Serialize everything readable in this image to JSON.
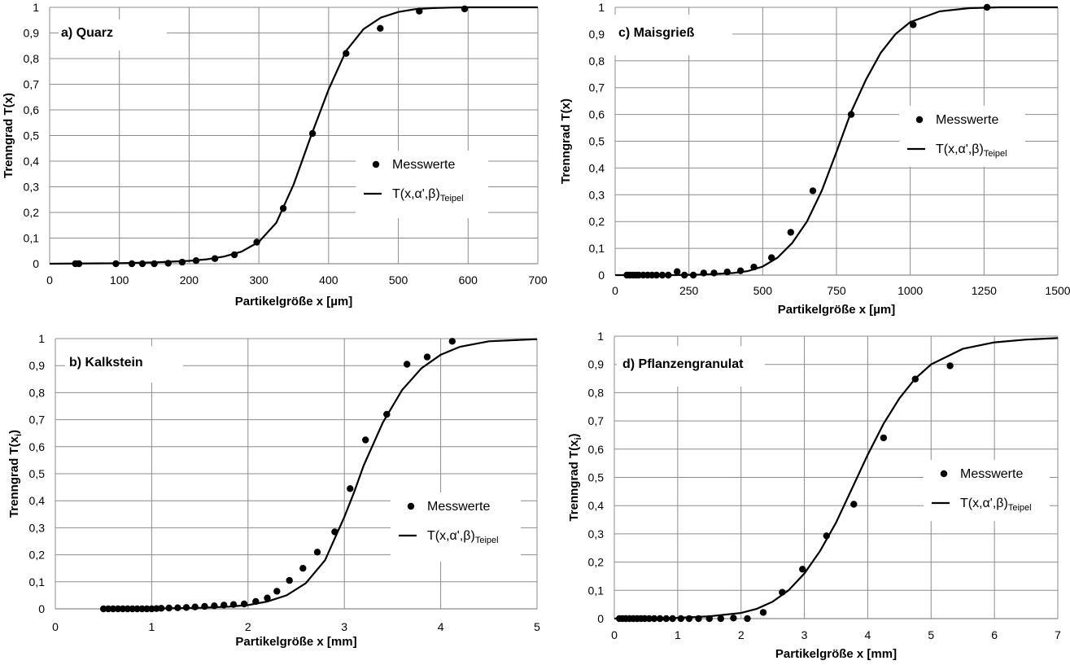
{
  "chart_data": [
    {
      "type": "scatter",
      "title": "a) Quarz",
      "xlabel": "Partikelgröße x [µm]",
      "ylabel": "Trenngrad T(x)",
      "xlim": [
        0,
        700
      ],
      "ylim": [
        0,
        1
      ],
      "xticks": [
        "0",
        "100",
        "200",
        "300",
        "400",
        "500",
        "600",
        "700"
      ],
      "yticks": [
        "0",
        "0,1",
        "0,2",
        "0,3",
        "0,4",
        "0,5",
        "0,6",
        "0,7",
        "0,8",
        "0,9",
        "1"
      ],
      "grid": "vertical and horizontal",
      "series": [
        {
          "name": "Messwerte",
          "style": "markers",
          "x": [
            37,
            42,
            95,
            118,
            133,
            150,
            170,
            190,
            210,
            237,
            265,
            297,
            335,
            377,
            425,
            474,
            530,
            595
          ],
          "y": [
            0,
            0,
            0,
            0,
            0,
            0,
            0.002,
            0.006,
            0.012,
            0.02,
            0.035,
            0.084,
            0.216,
            0.508,
            0.82,
            0.918,
            0.985,
            0.994
          ]
        },
        {
          "name": "T(x,α',β)Teipel",
          "name_main": "T(x,α',β)",
          "name_sub": "Teipel",
          "style": "line",
          "x": [
            0,
            100,
            150,
            200,
            225,
            250,
            275,
            300,
            325,
            350,
            375,
            400,
            425,
            450,
            475,
            500,
            525,
            550,
            575,
            600,
            650,
            700
          ],
          "y": [
            0,
            0.002,
            0.005,
            0.011,
            0.017,
            0.028,
            0.047,
            0.085,
            0.16,
            0.31,
            0.5,
            0.68,
            0.83,
            0.915,
            0.96,
            0.982,
            0.993,
            0.997,
            0.999,
            1,
            1,
            1
          ]
        }
      ],
      "legend": "right-center"
    },
    {
      "type": "scatter",
      "title": "b) Kalkstein",
      "xlabel": "Partikelgröße x [mm]",
      "ylabel": "Trenngrad T(xi)",
      "ylabel_main": "Trenngrad T(x",
      "ylabel_sub": "i",
      "ylabel_end": ")",
      "xlim": [
        0,
        5
      ],
      "ylim": [
        0,
        1
      ],
      "xticks": [
        "0",
        "1",
        "2",
        "3",
        "4",
        "5"
      ],
      "yticks": [
        "0",
        "0,1",
        "0,2",
        "0,3",
        "0,4",
        "0,5",
        "0,6",
        "0,7",
        "0,8",
        "0,9",
        "1"
      ],
      "grid": "vertical and horizontal",
      "series": [
        {
          "name": "Messwerte",
          "style": "markers",
          "x": [
            0.5,
            0.55,
            0.6,
            0.65,
            0.7,
            0.75,
            0.8,
            0.85,
            0.9,
            0.95,
            1.0,
            1.05,
            1.1,
            1.18,
            1.27,
            1.36,
            1.45,
            1.55,
            1.65,
            1.75,
            1.85,
            1.96,
            2.08,
            2.2,
            2.3,
            2.43,
            2.57,
            2.72,
            2.9,
            3.06,
            3.22,
            3.44,
            3.65,
            3.86,
            4.12
          ],
          "y": [
            0,
            0,
            0,
            0,
            0,
            0,
            0,
            0,
            0,
            0,
            0,
            0.001,
            0.002,
            0.003,
            0.004,
            0.005,
            0.007,
            0.009,
            0.011,
            0.014,
            0.016,
            0.018,
            0.027,
            0.04,
            0.065,
            0.105,
            0.15,
            0.21,
            0.285,
            0.445,
            0.625,
            0.72,
            0.905,
            0.932,
            0.99
          ]
        },
        {
          "name": "T(x,α',β)Teipel",
          "name_main": "T(x,α',β)",
          "name_sub": "Teipel",
          "style": "line",
          "x": [
            0.5,
            1.0,
            1.5,
            1.8,
            2.0,
            2.2,
            2.4,
            2.6,
            2.8,
            3.0,
            3.1,
            3.2,
            3.4,
            3.6,
            3.8,
            4.0,
            4.2,
            4.5,
            5.0
          ],
          "y": [
            0,
            0.001,
            0.004,
            0.008,
            0.014,
            0.027,
            0.05,
            0.095,
            0.18,
            0.34,
            0.43,
            0.53,
            0.69,
            0.81,
            0.89,
            0.94,
            0.97,
            0.99,
            0.998
          ]
        }
      ],
      "legend": "right-center"
    },
    {
      "type": "scatter",
      "title": "c) Maisgrieß",
      "xlabel": "Partikelgröße x [µm]",
      "ylabel": "Trenngrad T(x)",
      "xlim": [
        0,
        1500
      ],
      "ylim": [
        0,
        1
      ],
      "xticks": [
        "0",
        "250",
        "500",
        "750",
        "1000",
        "1250",
        "1500"
      ],
      "yticks": [
        "0",
        "0,1",
        "0,2",
        "0,3",
        "0,4",
        "0,5",
        "0,6",
        "0,7",
        "0,8",
        "0,9",
        "1"
      ],
      "grid": "vertical and horizontal",
      "series": [
        {
          "name": "Messwerte",
          "style": "markers",
          "x": [
            40,
            50,
            60,
            70,
            80,
            95,
            110,
            125,
            140,
            160,
            180,
            210,
            235,
            265,
            300,
            335,
            380,
            425,
            470,
            530,
            595,
            670,
            800,
            1010,
            1260
          ],
          "y": [
            0,
            0,
            0,
            0,
            0,
            0,
            0,
            0,
            0,
            0,
            0,
            0.013,
            0,
            0,
            0.008,
            0.008,
            0.012,
            0.016,
            0.03,
            0.065,
            0.16,
            0.315,
            0.6,
            0.935,
            1.0
          ]
        },
        {
          "name": "T(x,α',β)Teipel",
          "name_main": "T(x,α',β)",
          "name_sub": "Teipel",
          "style": "line",
          "x": [
            0,
            200,
            300,
            400,
            450,
            500,
            550,
            600,
            650,
            700,
            750,
            800,
            850,
            900,
            950,
            1000,
            1100,
            1200,
            1300,
            1400,
            1500
          ],
          "y": [
            0,
            0,
            0.002,
            0.008,
            0.015,
            0.032,
            0.065,
            0.12,
            0.2,
            0.315,
            0.46,
            0.61,
            0.73,
            0.83,
            0.9,
            0.945,
            0.985,
            0.997,
            1,
            1,
            1
          ]
        }
      ],
      "legend": "right-center"
    },
    {
      "type": "scatter",
      "title": "d) Pflanzengranulat",
      "xlabel": "Partikelgröße x [mm]",
      "ylabel": "Trenngrad T(xi)",
      "ylabel_main": "Trenngrad T(x",
      "ylabel_sub": "i",
      "ylabel_end": ")",
      "xlim": [
        0,
        7
      ],
      "ylim": [
        0,
        1
      ],
      "xticks": [
        "0",
        "1",
        "2",
        "3",
        "4",
        "5",
        "6",
        "7"
      ],
      "yticks": [
        "0",
        "0,1",
        "0,2",
        "0,3",
        "0,4",
        "0,5",
        "0,6",
        "0,7",
        "0,8",
        "0,9",
        "1"
      ],
      "grid": "vertical and horizontal",
      "series": [
        {
          "name": "Messwerte",
          "style": "markers",
          "x": [
            0.08,
            0.13,
            0.18,
            0.24,
            0.3,
            0.36,
            0.42,
            0.48,
            0.55,
            0.63,
            0.72,
            0.82,
            0.92,
            1.05,
            1.18,
            1.33,
            1.5,
            1.68,
            1.88,
            2.1,
            2.35,
            2.65,
            2.97,
            3.35,
            3.78,
            4.25,
            4.75,
            5.3
          ],
          "y": [
            0,
            0,
            0,
            0,
            0,
            0,
            0,
            0,
            0,
            0,
            0,
            0,
            0,
            0,
            0,
            0,
            0,
            0,
            0.002,
            0,
            0.022,
            0.093,
            0.175,
            0.293,
            0.405,
            0.64,
            0.848,
            0.895
          ]
        },
        {
          "name": "T(x,α',β)Teipel",
          "name_main": "T(x,α',β)",
          "name_sub": "Teipel",
          "style": "line",
          "x": [
            0,
            1.0,
            1.5,
            2.0,
            2.25,
            2.5,
            2.75,
            3.0,
            3.25,
            3.5,
            3.75,
            4.0,
            4.25,
            4.5,
            4.75,
            5.0,
            5.5,
            6.0,
            6.5,
            7.0
          ],
          "y": [
            0,
            0.003,
            0.008,
            0.02,
            0.035,
            0.06,
            0.1,
            0.16,
            0.24,
            0.34,
            0.46,
            0.58,
            0.69,
            0.78,
            0.85,
            0.9,
            0.955,
            0.978,
            0.988,
            0.993
          ]
        }
      ],
      "legend": "right-center"
    }
  ]
}
